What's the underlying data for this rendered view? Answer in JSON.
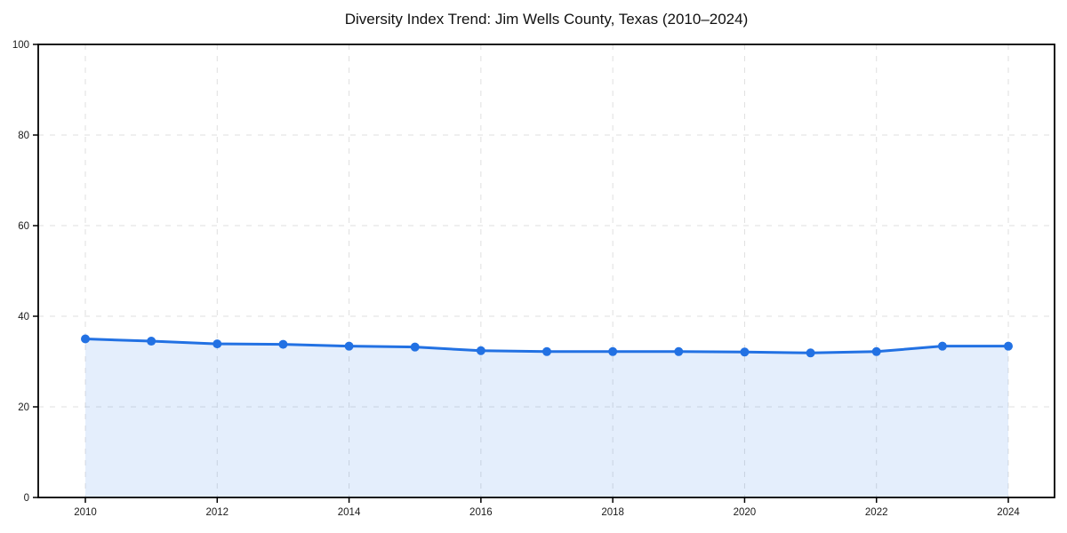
{
  "page": {
    "background_color": "#ffffff"
  },
  "chart_data": {
    "type": "line",
    "title": "Diversity Index Trend: Jim Wells County, Texas (2010–2024)",
    "series_name": "Diversity Index",
    "x": [
      2010,
      2011,
      2012,
      2013,
      2014,
      2015,
      2016,
      2017,
      2018,
      2019,
      2020,
      2021,
      2022,
      2023,
      2024
    ],
    "values": [
      35.0,
      34.5,
      33.9,
      33.8,
      33.4,
      33.2,
      32.4,
      32.2,
      32.2,
      32.2,
      32.1,
      31.9,
      32.2,
      33.4,
      33.4
    ],
    "xlabel": "",
    "ylabel": "",
    "xlim": [
      2009.3,
      2024.7
    ],
    "ylim": [
      0,
      100
    ],
    "xticks": [
      2010,
      2012,
      2014,
      2016,
      2018,
      2020,
      2022,
      2024
    ],
    "yticks": [
      0,
      20,
      40,
      60,
      80,
      100
    ],
    "grid": true,
    "grid_style": "dashed",
    "legend_position": "none",
    "markers": true,
    "area_fill": true,
    "line_color": "#2271e3",
    "marker_color": "#2271e3",
    "fill_color": "#2271e3",
    "fill_opacity": 0.12,
    "grid_color": "#dfdfdf",
    "axis_color": "#000000",
    "tick_label_color": "#1a1a1a",
    "title_color": "#111111"
  }
}
